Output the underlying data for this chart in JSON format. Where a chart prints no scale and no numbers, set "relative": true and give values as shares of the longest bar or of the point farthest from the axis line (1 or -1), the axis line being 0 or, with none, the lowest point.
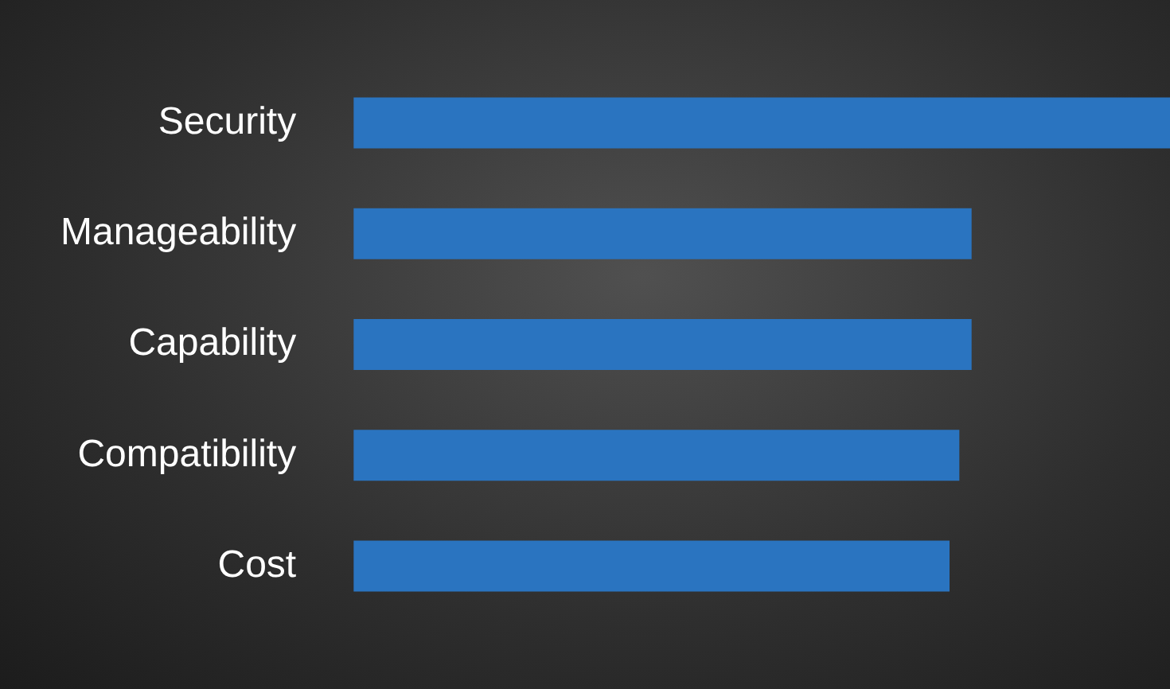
{
  "chart_data": {
    "type": "bar",
    "orientation": "horizontal",
    "relative": true,
    "categories": [
      "Security",
      "Manageability",
      "Capability",
      "Compatibility",
      "Cost"
    ],
    "values": [
      1,
      0.757,
      0.757,
      0.742,
      0.73
    ],
    "color": "#2a74c0"
  }
}
